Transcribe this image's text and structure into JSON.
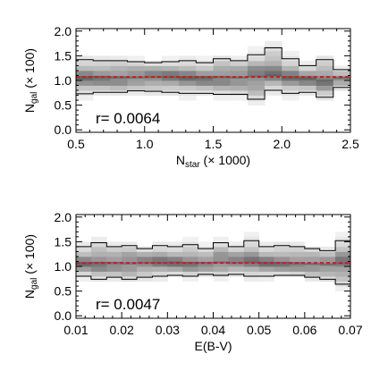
{
  "chart_data": [
    {
      "type": "heatmap",
      "xlabel_main": "N",
      "xlabel_sub": "star",
      "xlabel_suffix": " (× 1000)",
      "ylabel_main": "N",
      "ylabel_sub": "gal",
      "ylabel_suffix": " (× 100)",
      "xlim": [
        0.5,
        2.5
      ],
      "ylim": [
        -0.05,
        2.05
      ],
      "xticks": [
        0.5,
        1.0,
        1.5,
        2.0,
        2.5
      ],
      "xtick_labels": [
        "0.5",
        "1.0",
        "1.5",
        "2.0",
        "2.5"
      ],
      "yticks": [
        0.0,
        0.5,
        1.0,
        1.5,
        2.0
      ],
      "ytick_labels": [
        "0.0",
        "0.5",
        "1.0",
        "1.5",
        "2.0"
      ],
      "annotation": "r= 0.0064",
      "fit_line_value": 1.07,
      "fit_line_color": "#d11a1a",
      "bin_edges": [
        0.5,
        0.625,
        0.75,
        0.875,
        1.0,
        1.125,
        1.25,
        1.375,
        1.5,
        1.625,
        1.75,
        1.875,
        2.0,
        2.125,
        2.25,
        2.375,
        2.5
      ],
      "upper_envelope": [
        1.42,
        1.4,
        1.4,
        1.38,
        1.36,
        1.38,
        1.4,
        1.36,
        1.44,
        1.4,
        1.52,
        1.66,
        1.44,
        1.3,
        1.42,
        1.22
      ],
      "lower_envelope": [
        0.73,
        0.76,
        0.76,
        0.79,
        0.78,
        0.76,
        0.74,
        0.74,
        0.72,
        0.72,
        0.62,
        0.8,
        0.74,
        0.76,
        0.66,
        0.86
      ],
      "median": [
        1.06,
        1.07,
        1.06,
        1.06,
        1.07,
        1.07,
        1.06,
        1.06,
        1.07,
        1.06,
        1.08,
        1.1,
        1.06,
        1.04,
        1.0,
        1.05
      ]
    },
    {
      "type": "heatmap",
      "xlabel_main": "E(B-V)",
      "xlabel_sub": "",
      "xlabel_suffix": "",
      "ylabel_main": "N",
      "ylabel_sub": "gal",
      "ylabel_suffix": " (× 100)",
      "xlim": [
        0.01,
        0.07
      ],
      "ylim": [
        -0.05,
        2.05
      ],
      "xticks": [
        0.01,
        0.02,
        0.03,
        0.04,
        0.05,
        0.06,
        0.07
      ],
      "xtick_labels": [
        "0.01",
        "0.02",
        "0.03",
        "0.04",
        "0.05",
        "0.06",
        "0.07"
      ],
      "yticks": [
        0.0,
        0.5,
        1.0,
        1.5,
        2.0
      ],
      "ytick_labels": [
        "0.0",
        "0.5",
        "1.0",
        "1.5",
        "2.0"
      ],
      "annotation": "r= 0.0047",
      "fit_line_value": 1.07,
      "fit_line_color": "#d11a1a",
      "bin_edges": [
        0.01,
        0.0133,
        0.0167,
        0.02,
        0.0233,
        0.0267,
        0.03,
        0.0333,
        0.0367,
        0.04,
        0.0433,
        0.0467,
        0.05,
        0.0533,
        0.0567,
        0.06,
        0.0633,
        0.0667,
        0.07
      ],
      "upper_envelope": [
        1.4,
        1.48,
        1.4,
        1.42,
        1.36,
        1.42,
        1.4,
        1.44,
        1.36,
        1.48,
        1.4,
        1.52,
        1.4,
        1.42,
        1.4,
        1.36,
        1.32,
        1.52
      ],
      "lower_envelope": [
        0.8,
        0.74,
        0.78,
        0.74,
        0.78,
        0.8,
        0.82,
        0.8,
        0.84,
        0.82,
        0.84,
        0.8,
        0.8,
        0.82,
        0.82,
        0.78,
        0.74,
        0.64
      ],
      "median": [
        1.06,
        1.07,
        1.07,
        1.06,
        1.07,
        1.07,
        1.08,
        1.07,
        1.07,
        1.08,
        1.07,
        1.08,
        1.07,
        1.07,
        1.06,
        1.05,
        1.04,
        1.06
      ]
    }
  ]
}
